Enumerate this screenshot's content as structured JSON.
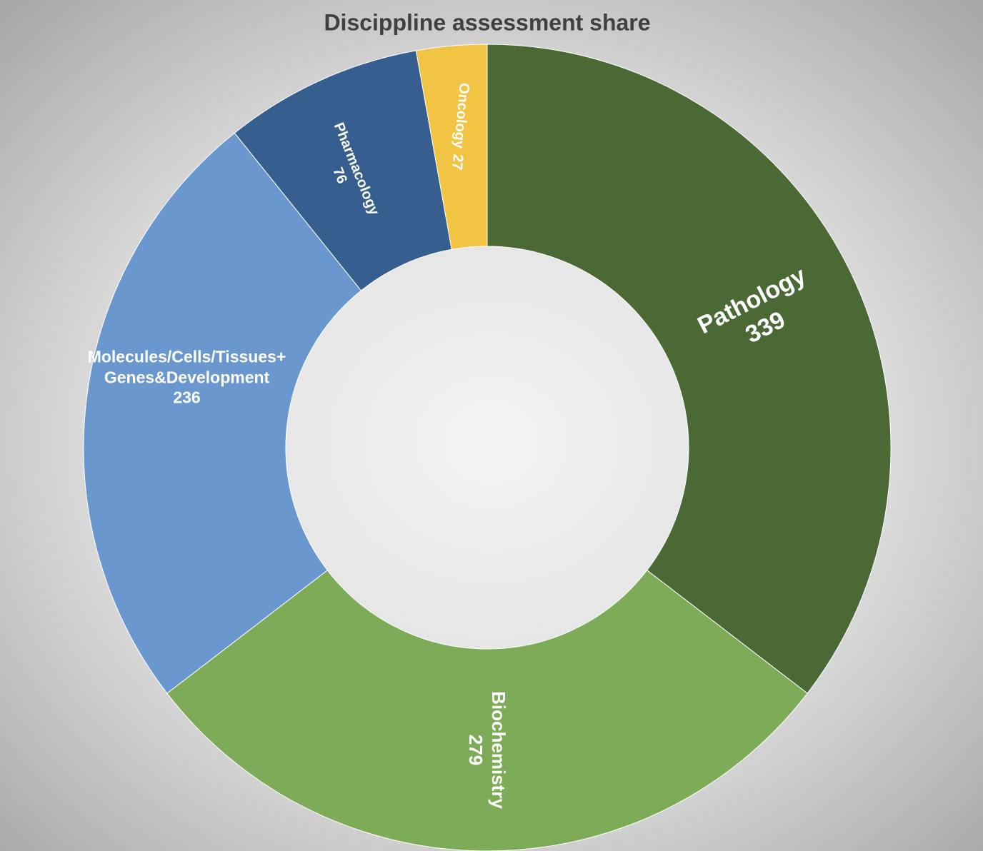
{
  "chart_data": {
    "type": "donut",
    "title": "Discippline assessment share",
    "categories": [
      "Pathology",
      "Biochemistry",
      "Molecules/Cells/Tissues+Genes&Development",
      "Pharmacology",
      "Oncology"
    ],
    "values": [
      339,
      279,
      236,
      76,
      27
    ],
    "colors": [
      "#4a6934",
      "#7eab57",
      "#6a98ce",
      "#365e8f",
      "#f2c443"
    ]
  }
}
